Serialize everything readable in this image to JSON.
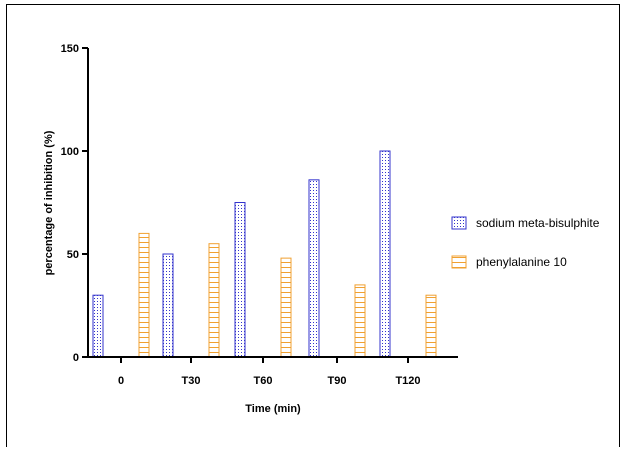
{
  "chart_data": {
    "type": "bar",
    "categories": [
      "0",
      "T30",
      "T60",
      "T90",
      "T120"
    ],
    "series": [
      {
        "name": "sodium meta-bisulphite",
        "values": [
          30,
          50,
          75,
          86,
          100
        ],
        "color": "#3333cc",
        "pattern": "dots"
      },
      {
        "name": "phenylalanine 10",
        "values": [
          60,
          55,
          48,
          35,
          30
        ],
        "color": "#f0a030",
        "pattern": "horizontal-lines"
      }
    ],
    "title": "",
    "xlabel": "Time (min)",
    "ylabel": "percentage of inhibition (%)",
    "ylim": [
      0,
      150
    ],
    "yticks": [
      0,
      50,
      100,
      150
    ],
    "grid": false,
    "legend_position": "right"
  }
}
